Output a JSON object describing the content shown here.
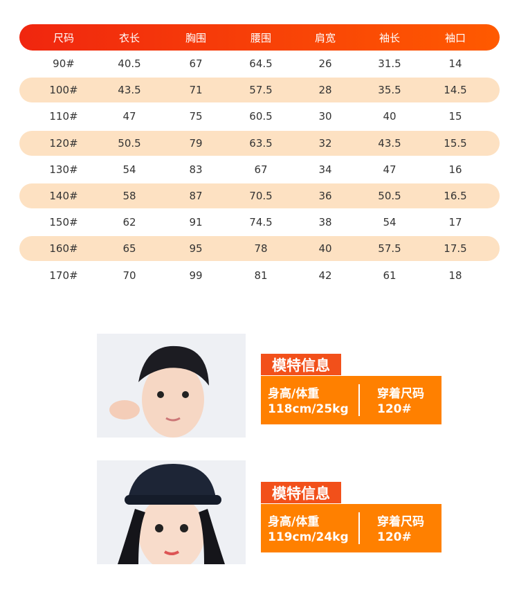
{
  "table": {
    "header": [
      "尺码",
      "衣长",
      "胸围",
      "腰围",
      "肩宽",
      "袖长",
      "袖口"
    ],
    "rows": [
      [
        "90#",
        "40.5",
        "67",
        "64.5",
        "26",
        "31.5",
        "14"
      ],
      [
        "100#",
        "43.5",
        "71",
        "57.5",
        "28",
        "35.5",
        "14.5"
      ],
      [
        "110#",
        "47",
        "75",
        "60.5",
        "30",
        "40",
        "15"
      ],
      [
        "120#",
        "50.5",
        "79",
        "63.5",
        "32",
        "43.5",
        "15.5"
      ],
      [
        "130#",
        "54",
        "83",
        "67",
        "34",
        "47",
        "16"
      ],
      [
        "140#",
        "58",
        "87",
        "70.5",
        "36",
        "50.5",
        "16.5"
      ],
      [
        "150#",
        "62",
        "91",
        "74.5",
        "38",
        "54",
        "17"
      ],
      [
        "160#",
        "65",
        "95",
        "78",
        "40",
        "57.5",
        "17.5"
      ],
      [
        "170#",
        "70",
        "99",
        "81",
        "42",
        "61",
        "18"
      ]
    ]
  },
  "models": [
    {
      "title": "模特信息",
      "height_weight_label": "身高/体重",
      "height_weight": "118cm/25kg",
      "size_label": "穿着尺码",
      "size": "120#"
    },
    {
      "title": "模特信息",
      "height_weight_label": "身高/体重",
      "height_weight": "119cm/24kg",
      "size_label": "穿着尺码",
      "size": "120#"
    }
  ]
}
